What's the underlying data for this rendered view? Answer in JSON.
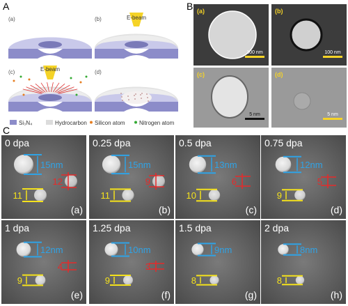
{
  "panel_a": {
    "label": "A",
    "subpanels": [
      "(a)",
      "(b)",
      "(c)",
      "(d)"
    ],
    "beam_labels": [
      "E-beam",
      "E-beam"
    ],
    "legend": [
      "Si₃N₄",
      "Hydrocarbon",
      "Silicon atom",
      "Nitrogen atom"
    ]
  },
  "panel_b": {
    "label": "B",
    "images": [
      {
        "tag": "(a)",
        "scale": "100 nm"
      },
      {
        "tag": "(b)",
        "scale": "100 nm"
      },
      {
        "tag": "(c)",
        "scale": "5 nm"
      },
      {
        "tag": "(d)",
        "scale": "5 nm"
      }
    ]
  },
  "panel_c": {
    "label": "C",
    "tiles": [
      {
        "tag": "(a)",
        "dose": "0 dpa",
        "blue": "15nm",
        "yellow": "11",
        "red": "12"
      },
      {
        "tag": "(b)",
        "dose": "0.25 dpa",
        "blue": "15nm",
        "yellow": "11",
        "red": "9"
      },
      {
        "tag": "(c)",
        "dose": "0.5 dpa",
        "blue": "13nm",
        "yellow": "10",
        "red": "6"
      },
      {
        "tag": "(d)",
        "dose": "0.75 dpa",
        "blue": "12nm",
        "yellow": "9",
        "red": "5"
      },
      {
        "tag": "(e)",
        "dose": "1 dpa",
        "blue": "12nm",
        "yellow": "9",
        "red": "4"
      },
      {
        "tag": "(f)",
        "dose": "1.25 dpa",
        "blue": "10nm",
        "yellow": "9",
        "red": "3"
      },
      {
        "tag": "(g)",
        "dose": "1.5 dpa",
        "blue": "9nm",
        "yellow": "8"
      },
      {
        "tag": "(h)",
        "dose": "2 dpa",
        "blue": "8nm",
        "yellow": "8"
      }
    ]
  }
}
